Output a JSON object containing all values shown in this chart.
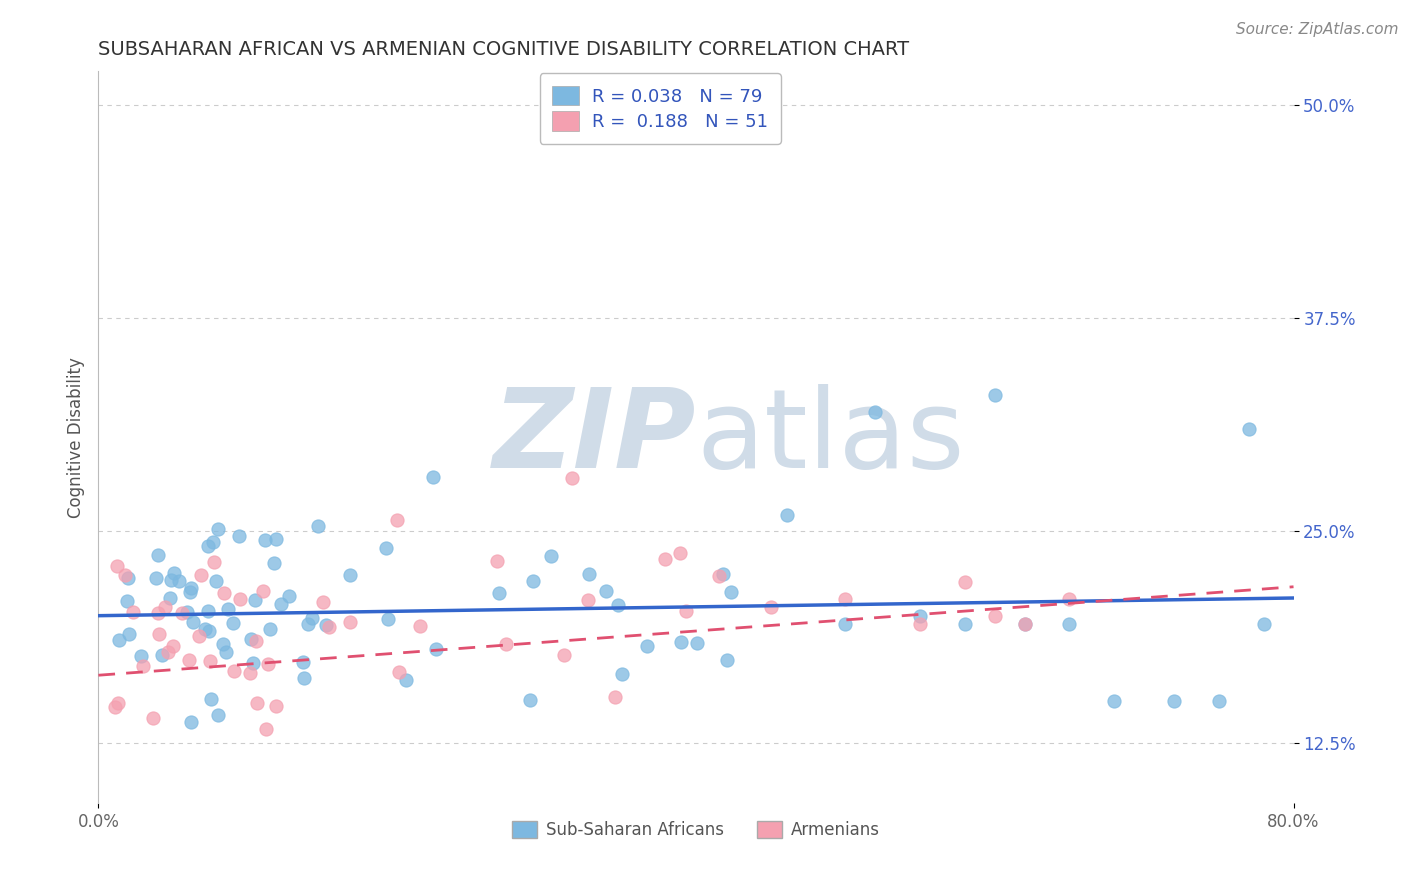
{
  "title": "SUBSAHARAN AFRICAN VS ARMENIAN COGNITIVE DISABILITY CORRELATION CHART",
  "source_text": "Source: ZipAtlas.com",
  "ylabel": "Cognitive Disability",
  "xlim": [
    0.0,
    0.8
  ],
  "ylim": [
    0.09,
    0.52
  ],
  "ytick_positions": [
    0.125,
    0.25,
    0.375,
    0.5
  ],
  "ytick_labels": [
    "12.5%",
    "25.0%",
    "37.5%",
    "50.0%"
  ],
  "group1_label": "Sub-Saharan Africans",
  "group1_color": "#7db8e0",
  "group1_R": 0.038,
  "group1_N": 79,
  "group2_label": "Armenians",
  "group2_color": "#f4a0b0",
  "group2_R": 0.188,
  "group2_N": 51,
  "trend1_color": "#3366cc",
  "trend2_color": "#e05070",
  "background_color": "#ffffff",
  "watermark_color": "#d0dce8",
  "grid_color": "#cccccc",
  "legend_R_color": "#3355bb",
  "title_color": "#333333",
  "title_fontsize": 14,
  "source_fontsize": 11
}
